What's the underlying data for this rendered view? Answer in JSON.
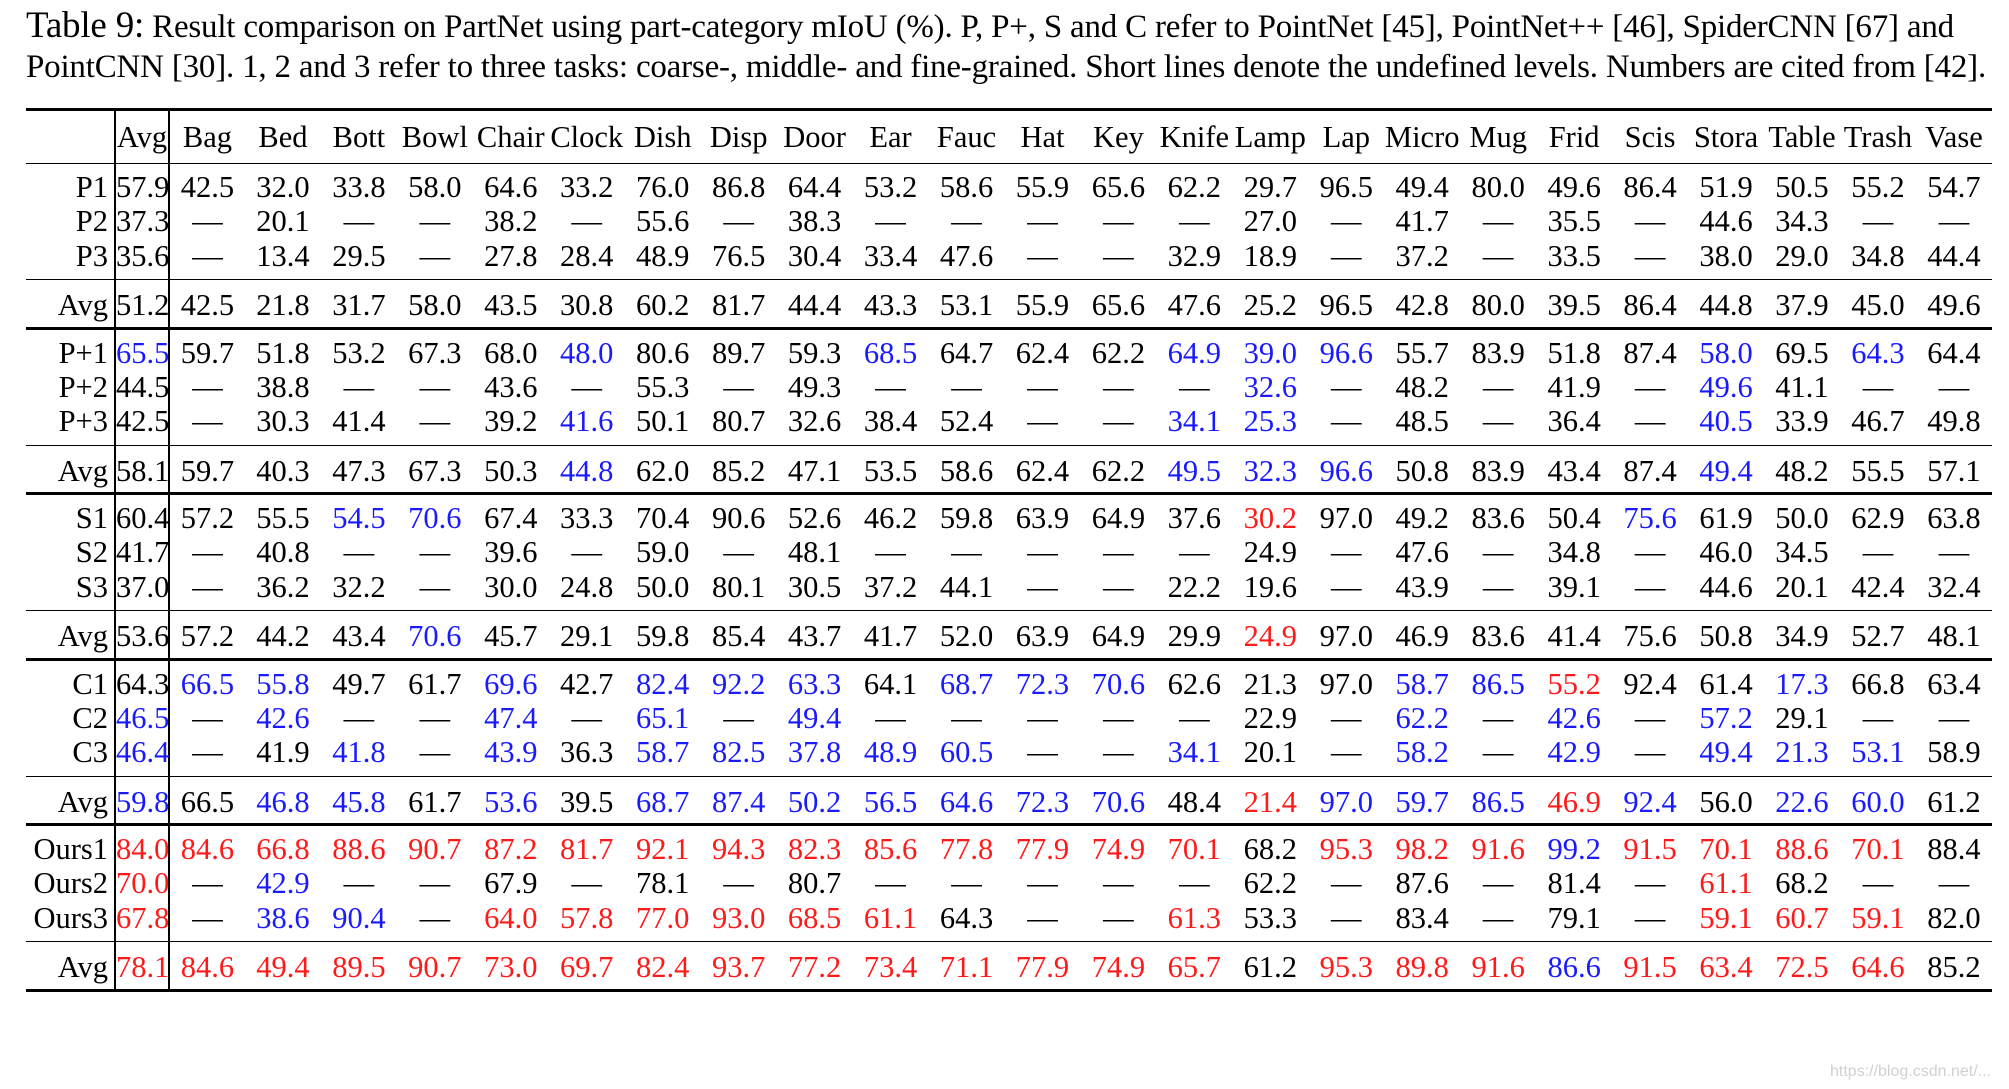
{
  "caption": {
    "label": "Table 9:",
    "text": "Result comparison on PartNet using part-category mIoU (%). P, P+, S and C refer to PointNet [45], PointNet++ [46], SpiderCNN [67] and PointCNN [30]. 1, 2 and 3 refer to three tasks: coarse-, middle- and fine-grained. Short lines denote the undefined levels. Numbers are cited from [42]."
  },
  "table": {
    "columns": [
      "",
      "Avg",
      "Bag",
      "Bed",
      "Bott",
      "Bowl",
      "Chair",
      "Clock",
      "Dish",
      "Disp",
      "Door",
      "Ear",
      "Fauc",
      "Hat",
      "Key",
      "Knife",
      "Lamp",
      "Lap",
      "Micro",
      "Mug",
      "Frid",
      "Scis",
      "Stora",
      "Table",
      "Trash",
      "Vase"
    ],
    "rows": [
      {
        "name": "P1",
        "cells": [
          "57.9",
          "42.5",
          "32.0",
          "33.8",
          "58.0",
          "64.6",
          "33.2",
          "76.0",
          "86.8",
          "64.4",
          "53.2",
          "58.6",
          "55.9",
          "65.6",
          "62.2",
          "29.7",
          "96.5",
          "49.4",
          "80.0",
          "49.6",
          "86.4",
          "51.9",
          "50.5",
          "55.2",
          "54.7"
        ]
      },
      {
        "name": "P2",
        "cells": [
          "37.3",
          "—",
          "20.1",
          "—",
          "—",
          "38.2",
          "—",
          "55.6",
          "—",
          "38.3",
          "—",
          "—",
          "—",
          "—",
          "—",
          "27.0",
          "—",
          "41.7",
          "—",
          "35.5",
          "—",
          "44.6",
          "34.3",
          "—",
          "—"
        ]
      },
      {
        "name": "P3",
        "cells": [
          "35.6",
          "—",
          "13.4",
          "29.5",
          "—",
          "27.8",
          "28.4",
          "48.9",
          "76.5",
          "30.4",
          "33.4",
          "47.6",
          "—",
          "—",
          "32.9",
          "18.9",
          "—",
          "37.2",
          "—",
          "33.5",
          "—",
          "38.0",
          "29.0",
          "34.8",
          "44.4"
        ]
      },
      {
        "name": "Avg",
        "cells": [
          "51.2",
          "42.5",
          "21.8",
          "31.7",
          "58.0",
          "43.5",
          "30.8",
          "60.2",
          "81.7",
          "44.4",
          "43.3",
          "53.1",
          "55.9",
          "65.6",
          "47.6",
          "25.2",
          "96.5",
          "42.8",
          "80.0",
          "39.5",
          "86.4",
          "44.8",
          "37.9",
          "45.0",
          "49.6"
        ]
      },
      {
        "name": "P+1",
        "cells": [
          "65.5",
          "59.7",
          "51.8",
          "53.2",
          "67.3",
          "68.0",
          "48.0",
          "80.6",
          "89.7",
          "59.3",
          "68.5",
          "64.7",
          "62.4",
          "62.2",
          "64.9",
          "39.0",
          "96.6",
          "55.7",
          "83.9",
          "51.8",
          "87.4",
          "58.0",
          "69.5",
          "64.3",
          "64.4"
        ]
      },
      {
        "name": "P+2",
        "cells": [
          "44.5",
          "—",
          "38.8",
          "—",
          "—",
          "43.6",
          "—",
          "55.3",
          "—",
          "49.3",
          "—",
          "—",
          "—",
          "—",
          "—",
          "32.6",
          "—",
          "48.2",
          "—",
          "41.9",
          "—",
          "49.6",
          "41.1",
          "—",
          "—"
        ]
      },
      {
        "name": "P+3",
        "cells": [
          "42.5",
          "—",
          "30.3",
          "41.4",
          "—",
          "39.2",
          "41.6",
          "50.1",
          "80.7",
          "32.6",
          "38.4",
          "52.4",
          "—",
          "—",
          "34.1",
          "25.3",
          "—",
          "48.5",
          "—",
          "36.4",
          "—",
          "40.5",
          "33.9",
          "46.7",
          "49.8"
        ]
      },
      {
        "name": "Avg",
        "cells": [
          "58.1",
          "59.7",
          "40.3",
          "47.3",
          "67.3",
          "50.3",
          "44.8",
          "62.0",
          "85.2",
          "47.1",
          "53.5",
          "58.6",
          "62.4",
          "62.2",
          "49.5",
          "32.3",
          "96.6",
          "50.8",
          "83.9",
          "43.4",
          "87.4",
          "49.4",
          "48.2",
          "55.5",
          "57.1"
        ]
      },
      {
        "name": "S1",
        "cells": [
          "60.4",
          "57.2",
          "55.5",
          "54.5",
          "70.6",
          "67.4",
          "33.3",
          "70.4",
          "90.6",
          "52.6",
          "46.2",
          "59.8",
          "63.9",
          "64.9",
          "37.6",
          "30.2",
          "97.0",
          "49.2",
          "83.6",
          "50.4",
          "75.6",
          "61.9",
          "50.0",
          "62.9",
          "63.8"
        ]
      },
      {
        "name": "S2",
        "cells": [
          "41.7",
          "—",
          "40.8",
          "—",
          "—",
          "39.6",
          "—",
          "59.0",
          "—",
          "48.1",
          "—",
          "—",
          "—",
          "—",
          "—",
          "24.9",
          "—",
          "47.6",
          "—",
          "34.8",
          "—",
          "46.0",
          "34.5",
          "—",
          "—"
        ]
      },
      {
        "name": "S3",
        "cells": [
          "37.0",
          "—",
          "36.2",
          "32.2",
          "—",
          "30.0",
          "24.8",
          "50.0",
          "80.1",
          "30.5",
          "37.2",
          "44.1",
          "—",
          "—",
          "22.2",
          "19.6",
          "—",
          "43.9",
          "—",
          "39.1",
          "—",
          "44.6",
          "20.1",
          "42.4",
          "32.4"
        ]
      },
      {
        "name": "Avg",
        "cells": [
          "53.6",
          "57.2",
          "44.2",
          "43.4",
          "70.6",
          "45.7",
          "29.1",
          "59.8",
          "85.4",
          "43.7",
          "41.7",
          "52.0",
          "63.9",
          "64.9",
          "29.9",
          "24.9",
          "97.0",
          "46.9",
          "83.6",
          "41.4",
          "75.6",
          "50.8",
          "34.9",
          "52.7",
          "48.1"
        ]
      },
      {
        "name": "C1",
        "cells": [
          "64.3",
          "66.5",
          "55.8",
          "49.7",
          "61.7",
          "69.6",
          "42.7",
          "82.4",
          "92.2",
          "63.3",
          "64.1",
          "68.7",
          "72.3",
          "70.6",
          "62.6",
          "21.3",
          "97.0",
          "58.7",
          "86.5",
          "55.2",
          "92.4",
          "61.4",
          "17.3",
          "66.8",
          "63.4"
        ]
      },
      {
        "name": "C2",
        "cells": [
          "46.5",
          "—",
          "42.6",
          "—",
          "—",
          "47.4",
          "—",
          "65.1",
          "—",
          "49.4",
          "—",
          "—",
          "—",
          "—",
          "—",
          "22.9",
          "—",
          "62.2",
          "—",
          "42.6",
          "—",
          "57.2",
          "29.1",
          "—",
          "—"
        ]
      },
      {
        "name": "C3",
        "cells": [
          "46.4",
          "—",
          "41.9",
          "41.8",
          "—",
          "43.9",
          "36.3",
          "58.7",
          "82.5",
          "37.8",
          "48.9",
          "60.5",
          "—",
          "—",
          "34.1",
          "20.1",
          "—",
          "58.2",
          "—",
          "42.9",
          "—",
          "49.4",
          "21.3",
          "53.1",
          "58.9"
        ]
      },
      {
        "name": "Avg",
        "cells": [
          "59.8",
          "66.5",
          "46.8",
          "45.8",
          "61.7",
          "53.6",
          "39.5",
          "68.7",
          "87.4",
          "50.2",
          "56.5",
          "64.6",
          "72.3",
          "70.6",
          "48.4",
          "21.4",
          "97.0",
          "59.7",
          "86.5",
          "46.9",
          "92.4",
          "56.0",
          "22.6",
          "60.0",
          "61.2"
        ]
      },
      {
        "name": "Ours1",
        "cells": [
          "84.0",
          "84.6",
          "66.8",
          "88.6",
          "90.7",
          "87.2",
          "81.7",
          "92.1",
          "94.3",
          "82.3",
          "85.6",
          "77.8",
          "77.9",
          "74.9",
          "70.1",
          "68.2",
          "95.3",
          "98.2",
          "91.6",
          "99.2",
          "91.5",
          "70.1",
          "88.6",
          "70.1",
          "88.4"
        ]
      },
      {
        "name": "Ours2",
        "cells": [
          "70.0",
          "—",
          "42.9",
          "—",
          "—",
          "67.9",
          "—",
          "78.1",
          "—",
          "80.7",
          "—",
          "—",
          "—",
          "—",
          "—",
          "62.2",
          "—",
          "87.6",
          "—",
          "81.4",
          "—",
          "61.1",
          "68.2",
          "—",
          "—"
        ]
      },
      {
        "name": "Ours3",
        "cells": [
          "67.8",
          "—",
          "38.6",
          "90.4",
          "—",
          "64.0",
          "57.8",
          "77.0",
          "93.0",
          "68.5",
          "61.1",
          "64.3",
          "—",
          "—",
          "61.3",
          "53.3",
          "—",
          "83.4",
          "—",
          "79.1",
          "—",
          "59.1",
          "60.7",
          "59.1",
          "82.0"
        ]
      },
      {
        "name": "Avg",
        "cells": [
          "78.1",
          "84.6",
          "49.4",
          "89.5",
          "90.7",
          "73.0",
          "69.7",
          "82.4",
          "93.7",
          "77.2",
          "73.4",
          "71.1",
          "77.9",
          "74.9",
          "65.7",
          "61.2",
          "95.3",
          "89.8",
          "91.6",
          "86.6",
          "91.5",
          "63.4",
          "72.5",
          "64.6",
          "85.2"
        ]
      }
    ],
    "highlights": {
      "red": "#ff1a1a",
      "blue": "#1a1aff",
      "red_cells": [
        [
          8,
          15
        ],
        [
          11,
          15
        ],
        [
          12,
          19
        ],
        [
          14,
          1
        ],
        [
          15,
          15
        ],
        [
          15,
          19
        ],
        [
          16,
          0
        ],
        [
          16,
          1
        ],
        [
          16,
          2
        ],
        [
          16,
          3
        ],
        [
          16,
          4
        ],
        [
          16,
          5
        ],
        [
          16,
          6
        ],
        [
          16,
          7
        ],
        [
          16,
          8
        ],
        [
          16,
          9
        ],
        [
          16,
          10
        ],
        [
          16,
          11
        ],
        [
          16,
          12
        ],
        [
          16,
          13
        ],
        [
          16,
          14
        ],
        [
          16,
          16
        ],
        [
          16,
          17
        ],
        [
          16,
          18
        ],
        [
          16,
          20
        ],
        [
          16,
          21
        ],
        [
          16,
          22
        ],
        [
          16,
          23
        ],
        [
          17,
          0
        ],
        [
          17,
          1
        ],
        [
          17,
          4
        ],
        [
          17,
          6
        ],
        [
          17,
          8
        ],
        [
          17,
          14
        ],
        [
          17,
          16
        ],
        [
          17,
          18
        ],
        [
          17,
          20
        ],
        [
          17,
          21
        ],
        [
          18,
          0
        ],
        [
          18,
          4
        ],
        [
          18,
          5
        ],
        [
          18,
          6
        ],
        [
          18,
          7
        ],
        [
          18,
          8
        ],
        [
          18,
          9
        ],
        [
          18,
          10
        ],
        [
          18,
          13
        ],
        [
          18,
          14
        ],
        [
          18,
          16
        ],
        [
          18,
          18
        ],
        [
          18,
          20
        ],
        [
          18,
          21
        ],
        [
          18,
          22
        ],
        [
          18,
          23
        ],
        [
          19,
          0
        ],
        [
          19,
          1
        ],
        [
          19,
          2
        ],
        [
          19,
          3
        ],
        [
          19,
          4
        ],
        [
          19,
          5
        ],
        [
          19,
          6
        ],
        [
          19,
          7
        ],
        [
          19,
          8
        ],
        [
          19,
          9
        ],
        [
          19,
          10
        ],
        [
          19,
          11
        ],
        [
          19,
          12
        ],
        [
          19,
          13
        ],
        [
          19,
          14
        ],
        [
          19,
          16
        ],
        [
          19,
          17
        ],
        [
          19,
          18
        ],
        [
          19,
          20
        ],
        [
          19,
          21
        ],
        [
          19,
          22
        ],
        [
          19,
          23
        ]
      ],
      "blue_cells": [
        [
          4,
          0
        ],
        [
          4,
          6
        ],
        [
          4,
          10
        ],
        [
          4,
          14
        ],
        [
          4,
          15
        ],
        [
          4,
          16
        ],
        [
          4,
          21
        ],
        [
          4,
          23
        ],
        [
          5,
          15
        ],
        [
          5,
          21
        ],
        [
          6,
          6
        ],
        [
          6,
          14
        ],
        [
          6,
          15
        ],
        [
          6,
          21
        ],
        [
          7,
          6
        ],
        [
          7,
          14
        ],
        [
          7,
          15
        ],
        [
          7,
          16
        ],
        [
          7,
          21
        ],
        [
          8,
          3
        ],
        [
          8,
          4
        ],
        [
          8,
          20
        ],
        [
          11,
          4
        ],
        [
          12,
          1
        ],
        [
          12,
          2
        ],
        [
          12,
          5
        ],
        [
          12,
          7
        ],
        [
          12,
          8
        ],
        [
          12,
          9
        ],
        [
          12,
          11
        ],
        [
          12,
          12
        ],
        [
          12,
          13
        ],
        [
          12,
          17
        ],
        [
          12,
          18
        ],
        [
          12,
          19
        ],
        [
          12,
          22
        ],
        [
          13,
          0
        ],
        [
          13,
          2
        ],
        [
          13,
          5
        ],
        [
          13,
          7
        ],
        [
          13,
          9
        ],
        [
          13,
          17
        ],
        [
          13,
          19
        ],
        [
          13,
          21
        ],
        [
          14,
          0
        ],
        [
          14,
          3
        ],
        [
          14,
          5
        ],
        [
          14,
          7
        ],
        [
          14,
          8
        ],
        [
          14,
          9
        ],
        [
          14,
          10
        ],
        [
          14,
          11
        ],
        [
          14,
          14
        ],
        [
          14,
          17
        ],
        [
          14,
          19
        ],
        [
          14,
          21
        ],
        [
          14,
          22
        ],
        [
          14,
          23
        ],
        [
          15,
          0
        ],
        [
          15,
          2
        ],
        [
          15,
          3
        ],
        [
          15,
          5
        ],
        [
          15,
          7
        ],
        [
          15,
          8
        ],
        [
          15,
          9
        ],
        [
          15,
          10
        ],
        [
          15,
          11
        ],
        [
          15,
          12
        ],
        [
          15,
          13
        ],
        [
          15,
          16
        ],
        [
          15,
          17
        ],
        [
          15,
          18
        ],
        [
          15,
          20
        ],
        [
          15,
          22
        ],
        [
          15,
          23
        ],
        [
          16,
          19
        ],
        [
          17,
          2
        ],
        [
          18,
          2
        ],
        [
          18,
          3
        ],
        [
          19,
          19
        ]
      ]
    }
  },
  "watermark": "https://blog.csdn.net/..."
}
